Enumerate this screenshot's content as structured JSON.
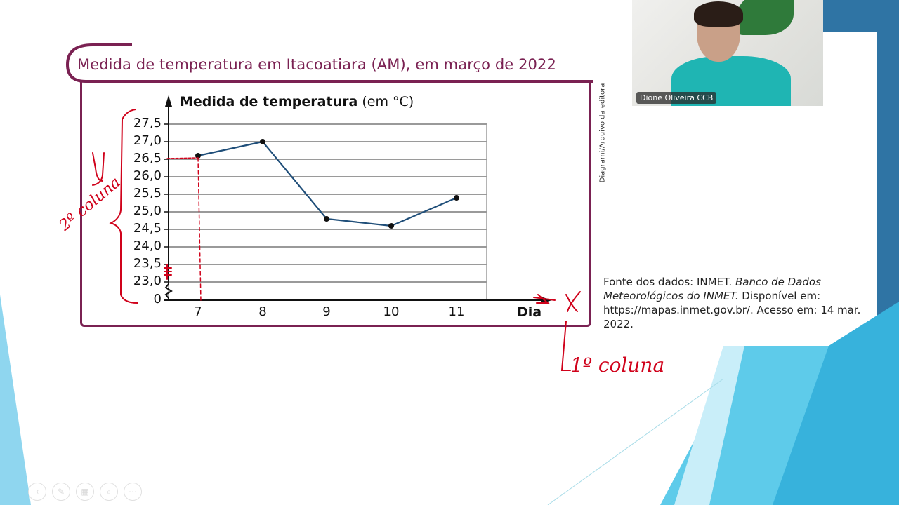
{
  "slide": {
    "title": "Medida de temperatura em Itacoatiara (AM), em março de 2022",
    "credit": "Diagrami/Arquivo da editora",
    "source": {
      "prefix": "Fonte dos dados: INMET. ",
      "italic": "Banco de Dados Meteorológicos do INMET.",
      "suffix": " Disponível em: https://mapas.inmet.gov.br/. Acesso em: 14 mar. 2022."
    }
  },
  "chart_data": {
    "type": "line",
    "title": "Medida de temperatura em Itacoatiara (AM), em março de 2022",
    "ylabel_bold": "Medida de temperatura",
    "ylabel_unit": "(em °C)",
    "xlabel": "Dia",
    "categories": [
      "7",
      "8",
      "9",
      "10",
      "11"
    ],
    "x": [
      7,
      8,
      9,
      10,
      11
    ],
    "values": [
      26.6,
      27.0,
      24.8,
      24.6,
      25.4
    ],
    "y_ticks": [
      "27,5",
      "27,0",
      "26,5",
      "26,0",
      "25,5",
      "25,0",
      "24,5",
      "24,0",
      "23,5",
      "23,0",
      "0"
    ],
    "ylim": [
      23.0,
      27.5
    ],
    "y_axis_break": true,
    "grid": "horizontal",
    "line_color": "#1f4e79",
    "legend": null
  },
  "annotations": {
    "y_label": "y",
    "y_column": "2º coluna",
    "x_label": "X",
    "x_column": "1º coluna"
  },
  "webcam": {
    "name": "Dione Oliveira CCB"
  },
  "controls": [
    {
      "icon": "back-icon"
    },
    {
      "icon": "pen-icon"
    },
    {
      "icon": "slides-icon"
    },
    {
      "icon": "zoom-icon"
    },
    {
      "icon": "more-icon"
    }
  ],
  "colors": {
    "frame": "#7a2152",
    "accent_blue": "#2e6e9e",
    "light_blue": "#5ecbea",
    "handwriting": "#d0021b"
  }
}
